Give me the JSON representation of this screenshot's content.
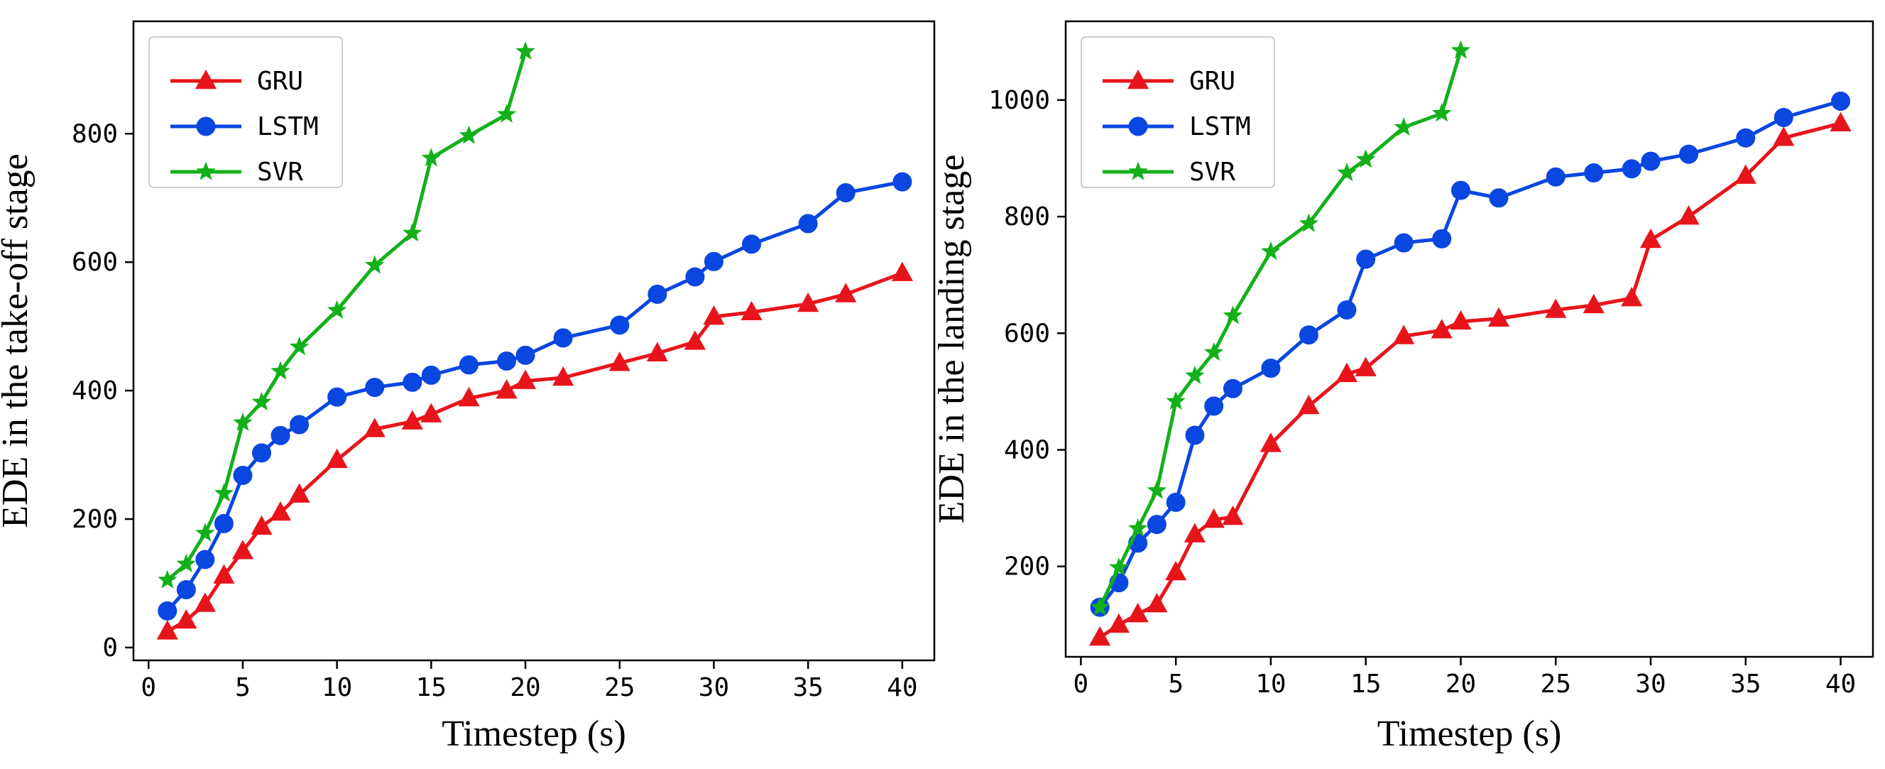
{
  "chart_data": [
    {
      "type": "line",
      "title": "",
      "xlabel": "Timestep (s)",
      "ylabel": "EDE in the take-off stage",
      "xlim": [
        -0.8,
        41.7
      ],
      "ylim": [
        -20,
        975
      ],
      "xticks": [
        0,
        5,
        10,
        15,
        20,
        25,
        30,
        35,
        40
      ],
      "yticks": [
        0,
        200,
        400,
        600,
        800
      ],
      "grid": false,
      "legend": "top-left",
      "series": [
        {
          "name": "GRU",
          "color": "#e8141b",
          "marker": "triangle",
          "x": [
            1,
            2,
            3,
            4,
            5,
            6,
            7,
            8,
            10,
            12,
            14,
            15,
            17,
            19,
            20,
            22,
            25,
            27,
            29,
            30,
            32,
            35,
            37,
            40
          ],
          "y": [
            25,
            42,
            68,
            112,
            150,
            188,
            210,
            238,
            292,
            340,
            352,
            363,
            388,
            400,
            415,
            420,
            443,
            458,
            476,
            515,
            522,
            535,
            550,
            583
          ]
        },
        {
          "name": "LSTM",
          "color": "#0a46e0",
          "marker": "circle",
          "x": [
            1,
            2,
            3,
            4,
            5,
            6,
            7,
            8,
            10,
            12,
            14,
            15,
            17,
            19,
            20,
            22,
            25,
            27,
            29,
            30,
            32,
            35,
            37,
            40
          ],
          "y": [
            57,
            90,
            137,
            193,
            268,
            303,
            330,
            347,
            390,
            405,
            413,
            424,
            440,
            446,
            455,
            482,
            502,
            550,
            577,
            601,
            628,
            660,
            708,
            725
          ]
        },
        {
          "name": "SVR",
          "color": "#13b01a",
          "marker": "star",
          "x": [
            1,
            2,
            3,
            4,
            5,
            6,
            7,
            8,
            10,
            12,
            14,
            15,
            17,
            19,
            20
          ],
          "y": [
            105,
            130,
            178,
            240,
            350,
            382,
            430,
            468,
            525,
            595,
            645,
            762,
            797,
            830,
            928
          ]
        }
      ]
    },
    {
      "type": "line",
      "title": "",
      "xlabel": "Timestep (s)",
      "ylabel": "EDE in the landing stage",
      "xlim": [
        -0.8,
        41.7
      ],
      "ylim": [
        45,
        1135
      ],
      "xticks": [
        0,
        5,
        10,
        15,
        20,
        25,
        30,
        35,
        40
      ],
      "yticks": [
        200,
        400,
        600,
        800,
        1000
      ],
      "grid": false,
      "legend": "top-left",
      "series": [
        {
          "name": "GRU",
          "color": "#e8141b",
          "marker": "triangle",
          "x": [
            1,
            2,
            3,
            4,
            5,
            6,
            7,
            8,
            10,
            12,
            14,
            15,
            17,
            19,
            20,
            22,
            25,
            27,
            29,
            30,
            32,
            35,
            37,
            40
          ],
          "y": [
            78,
            100,
            118,
            135,
            190,
            255,
            280,
            285,
            410,
            475,
            530,
            540,
            595,
            605,
            620,
            625,
            640,
            648,
            660,
            760,
            800,
            870,
            935,
            960
          ]
        },
        {
          "name": "LSTM",
          "color": "#0a46e0",
          "marker": "circle",
          "x": [
            1,
            2,
            3,
            4,
            5,
            6,
            7,
            8,
            10,
            12,
            14,
            15,
            17,
            19,
            20,
            22,
            25,
            27,
            29,
            30,
            32,
            35,
            37,
            40
          ],
          "y": [
            130,
            172,
            240,
            272,
            310,
            425,
            475,
            505,
            540,
            597,
            640,
            727,
            755,
            762,
            845,
            832,
            868,
            875,
            882,
            895,
            907,
            935,
            970,
            998
          ]
        },
        {
          "name": "SVR",
          "color": "#13b01a",
          "marker": "star",
          "x": [
            1,
            2,
            3,
            4,
            5,
            6,
            7,
            8,
            10,
            12,
            14,
            15,
            17,
            19,
            20
          ],
          "y": [
            130,
            198,
            265,
            330,
            483,
            527,
            567,
            630,
            740,
            788,
            875,
            898,
            953,
            977,
            1085
          ]
        }
      ]
    }
  ]
}
